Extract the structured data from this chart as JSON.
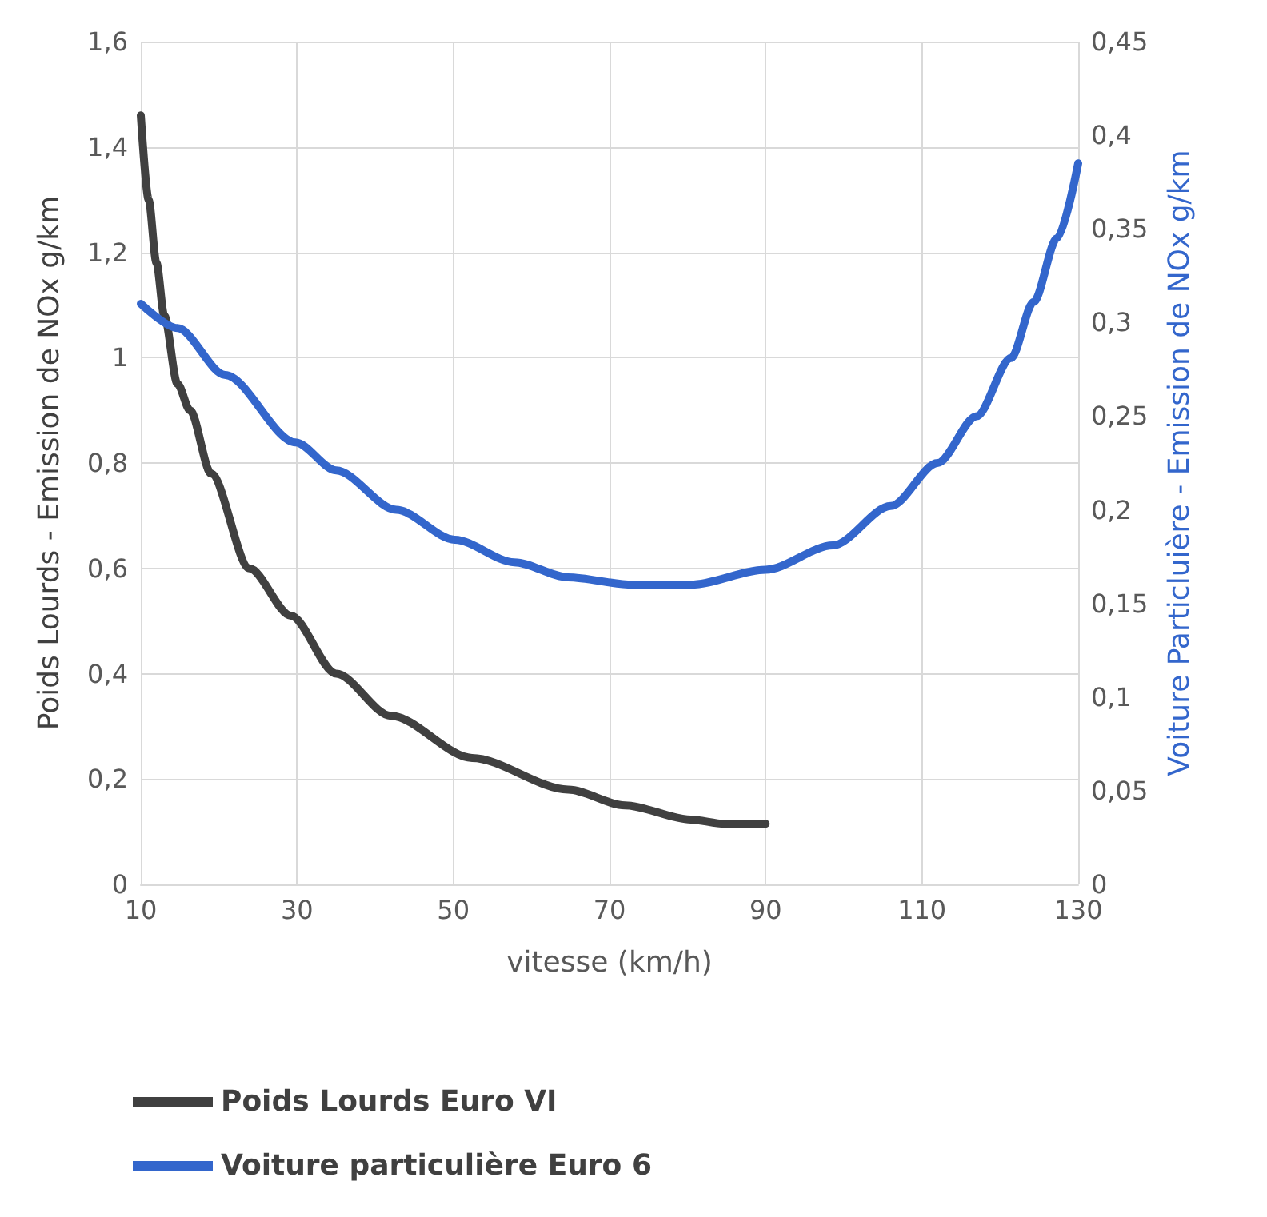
{
  "chart_data": {
    "type": "line",
    "xlabel": "vitesse (km/h)",
    "ylabel": "Poids Lourds - Emission de NOx g/km",
    "y2label": "Voiture Particluière - Emission de NOx g/km",
    "xlim": [
      10,
      130
    ],
    "xticks": [
      10,
      30,
      50,
      70,
      90,
      110,
      130
    ],
    "ylim": [
      0,
      1.6
    ],
    "yticks": [
      0,
      {
        "value": 0.2,
        "label": "0,2"
      },
      {
        "value": 0.4,
        "label": "0,4"
      },
      {
        "value": 0.6,
        "label": "0,6"
      },
      {
        "value": 0.8,
        "label": "0,8"
      },
      1,
      {
        "value": 1.2,
        "label": "1,2"
      },
      {
        "value": 1.4,
        "label": "1,4"
      },
      {
        "value": 1.6,
        "label": "1,6"
      }
    ],
    "y2lim": [
      0,
      0.45
    ],
    "y2ticks": [
      0,
      {
        "value": 0.05,
        "label": "0,05"
      },
      {
        "value": 0.1,
        "label": "0,1"
      },
      {
        "value": 0.15,
        "label": "0,15"
      },
      {
        "value": 0.2,
        "label": "0,2"
      },
      {
        "value": 0.25,
        "label": "0,25"
      },
      {
        "value": 0.3,
        "label": "0,3"
      },
      {
        "value": 0.35,
        "label": "0,35"
      },
      {
        "value": 0.4,
        "label": "0,4"
      },
      {
        "value": 0.45,
        "label": "0,45"
      }
    ],
    "grid": true,
    "legend": "bottom left",
    "marker": "none",
    "line_style": "solid",
    "series": [
      {
        "name": "Poids Lourds Euro VI",
        "color": "#404040",
        "x": [
          10,
          11,
          12,
          13,
          14.7,
          16.3,
          19,
          23.9,
          29.2,
          35,
          42,
          52.4,
          64.7,
          72,
          80.4,
          84.7,
          90
        ],
        "values": [
          1.46,
          1.3,
          1.18,
          1.08,
          0.95,
          0.9,
          0.78,
          0.6,
          0.51,
          0.4,
          0.32,
          0.24,
          0.18,
          0.15,
          0.123,
          0.115,
          0.115
        ]
      },
      {
        "name": "Voiture particulière Euro 6",
        "color": "#3366cc",
        "axis": "y2",
        "x": [
          10,
          14.7,
          20.8,
          29.8,
          35,
          42.7,
          50.2,
          57.8,
          64.7,
          72.9,
          80.4,
          90,
          98.6,
          106,
          112,
          117,
          121.4,
          124.3,
          127.3,
          130
        ],
        "values": [
          0.31,
          0.297,
          0.272,
          0.236,
          0.221,
          0.2,
          0.184,
          0.172,
          0.164,
          0.16,
          0.16,
          0.168,
          0.181,
          0.202,
          0.225,
          0.25,
          0.281,
          0.311,
          0.345,
          0.385
        ]
      }
    ]
  }
}
